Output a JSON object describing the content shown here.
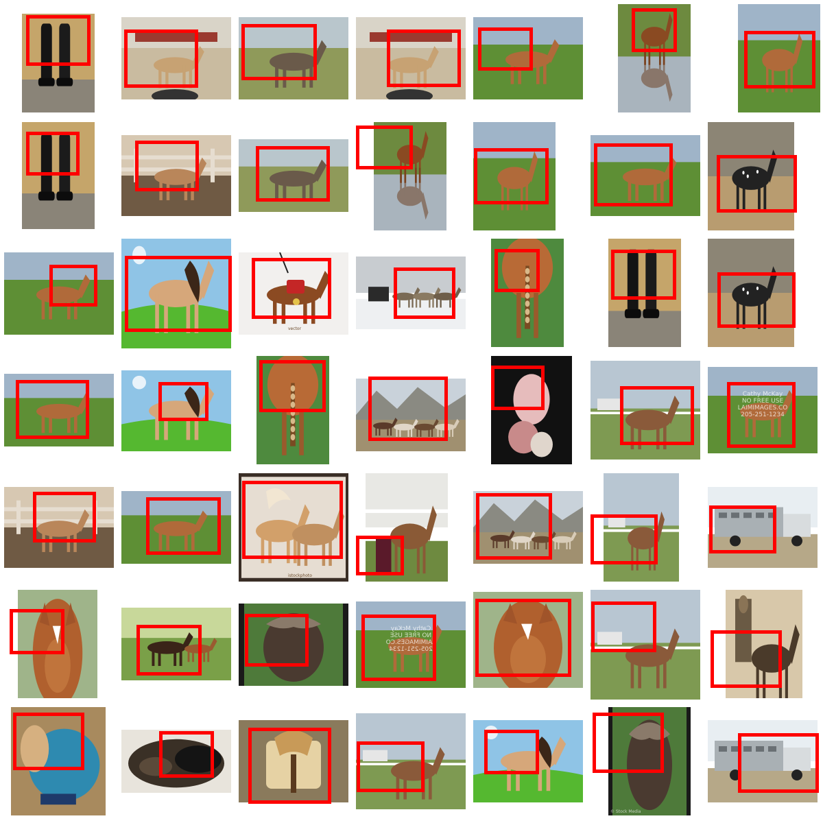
{
  "colors": {
    "highlight": "#ff0000",
    "background": "#ffffff"
  },
  "grid": {
    "rows": 7,
    "columns": 7
  },
  "tiles": [
    {
      "subject": "riding-boots",
      "scene": "boots"
    },
    {
      "subject": "dun-horse-paddock",
      "scene": "paddock"
    },
    {
      "subject": "grey-draft-horse",
      "scene": "field"
    },
    {
      "subject": "dun-horse-paddock",
      "scene": "paddock"
    },
    {
      "subject": "pinto-horse-grazing",
      "scene": "pasture"
    },
    {
      "subject": "chestnut-horse-reflection",
      "scene": "pond"
    },
    {
      "subject": "palomino-horse",
      "scene": "pasture"
    },
    {
      "subject": "riding-boots",
      "scene": "boots"
    },
    {
      "subject": "buckskin-horse-fence",
      "scene": "fence"
    },
    {
      "subject": "paint-horse-grazing",
      "scene": "field"
    },
    {
      "subject": "chestnut-horse-reflection",
      "scene": "pond"
    },
    {
      "subject": "palomino-horse-grazing",
      "scene": "pasture"
    },
    {
      "subject": "palomino-horse-grazing",
      "scene": "pasture"
    },
    {
      "subject": "black-appaloosa-horse",
      "scene": "arena"
    },
    {
      "subject": "pinto-horse-grazing",
      "scene": "pasture"
    },
    {
      "subject": "cartoon-pony",
      "scene": "cartoon"
    },
    {
      "subject": "plush-toy-horse",
      "scene": "toy",
      "tag": "vector"
    },
    {
      "subject": "draft-horse-team-sleigh",
      "scene": "snow"
    },
    {
      "subject": "braided-tail",
      "scene": "tail"
    },
    {
      "subject": "riding-boots",
      "scene": "boots"
    },
    {
      "subject": "black-appaloosa-horse",
      "scene": "arena"
    },
    {
      "subject": "chestnut-pony-grazing",
      "scene": "pasture"
    },
    {
      "subject": "cartoon-horse-mane",
      "scene": "cartoon"
    },
    {
      "subject": "braided-tail",
      "scene": "tail"
    },
    {
      "subject": "pack-horses-mountains",
      "scene": "mountains"
    },
    {
      "subject": "foal-closeup",
      "scene": "dark"
    },
    {
      "subject": "quarter-horse-field",
      "scene": "ranch"
    },
    {
      "subject": "horse-watermark",
      "scene": "pasture",
      "watermark": [
        "Cathy McKay",
        "NO FREE USE",
        "LAIMIMAGES.CO",
        "205-251-1234"
      ]
    },
    {
      "subject": "buckskin-horse-fence",
      "scene": "fence"
    },
    {
      "subject": "chestnut-pony-grazing",
      "scene": "pasture"
    },
    {
      "subject": "palomino-horses-rearing",
      "scene": "studio",
      "tag": "istockphoto"
    },
    {
      "subject": "horse-at-rail",
      "scene": "barn"
    },
    {
      "subject": "pack-horses-mountains",
      "scene": "mountains"
    },
    {
      "subject": "roan-horse",
      "scene": "ranch"
    },
    {
      "subject": "horse-trailer-truck",
      "scene": "truck"
    },
    {
      "subject": "chestnut-horse-head",
      "scene": "portrait"
    },
    {
      "subject": "mare-and-foal",
      "scene": "garden"
    },
    {
      "subject": "dark-pony-portrait",
      "scene": "portrait-dark"
    },
    {
      "subject": "horse-watermark-mirrored",
      "scene": "pasture",
      "watermark": [
        "Cathy McKay",
        "NO FREE USE",
        "LAIMIMAGES.CO",
        "205-251-1234"
      ]
    },
    {
      "subject": "pony-mane-closeup",
      "scene": "portrait"
    },
    {
      "subject": "horses-tied-fence",
      "scene": "ranch"
    },
    {
      "subject": "vintage-rider-photo",
      "scene": "sepia"
    },
    {
      "subject": "pony-in-blanket",
      "scene": "stable"
    },
    {
      "subject": "foal-lying-down",
      "scene": "stable-dark"
    },
    {
      "subject": "western-saddle",
      "scene": "saddle"
    },
    {
      "subject": "buckskin-horse-ranch",
      "scene": "ranch"
    },
    {
      "subject": "cartoon-horse",
      "scene": "cartoon"
    },
    {
      "subject": "horse-head-sculpture",
      "scene": "portrait-dark",
      "caption": "© Stock Media"
    },
    {
      "subject": "horse-trailer-truck",
      "scene": "truck"
    }
  ]
}
